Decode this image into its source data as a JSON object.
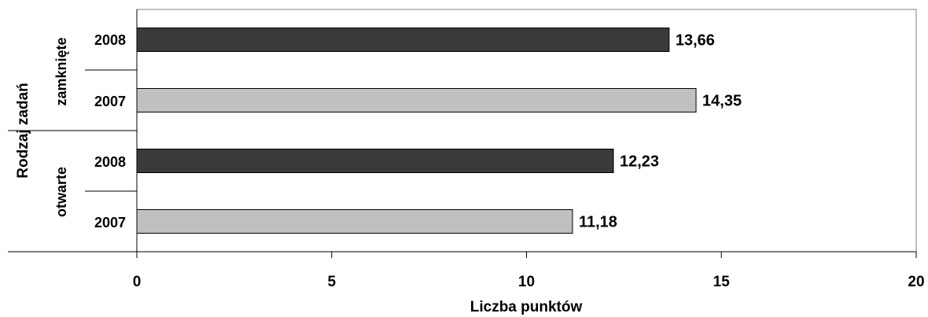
{
  "chart_data": {
    "type": "bar",
    "orientation": "horizontal",
    "ylabel": "Rodzaj zadań",
    "xlabel": "Liczba punktów",
    "xlim": [
      0,
      20
    ],
    "xticks": [
      "0",
      "5",
      "10",
      "15",
      "20"
    ],
    "grid": false,
    "legend": "none",
    "groups": [
      "zamknięte",
      "otwarte"
    ],
    "bars": [
      {
        "group": "zamknięte",
        "category": "2008",
        "value": 13.66,
        "label": "13,66",
        "color": "#3a3a3a"
      },
      {
        "group": "zamknięte",
        "category": "2007",
        "value": 14.35,
        "label": "14,35",
        "color": "#c0c0c0"
      },
      {
        "group": "otwarte",
        "category": "2008",
        "value": 12.23,
        "label": "12,23",
        "color": "#3a3a3a"
      },
      {
        "group": "otwarte",
        "category": "2007",
        "value": 11.18,
        "label": "11,18",
        "color": "#c0c0c0"
      }
    ]
  }
}
